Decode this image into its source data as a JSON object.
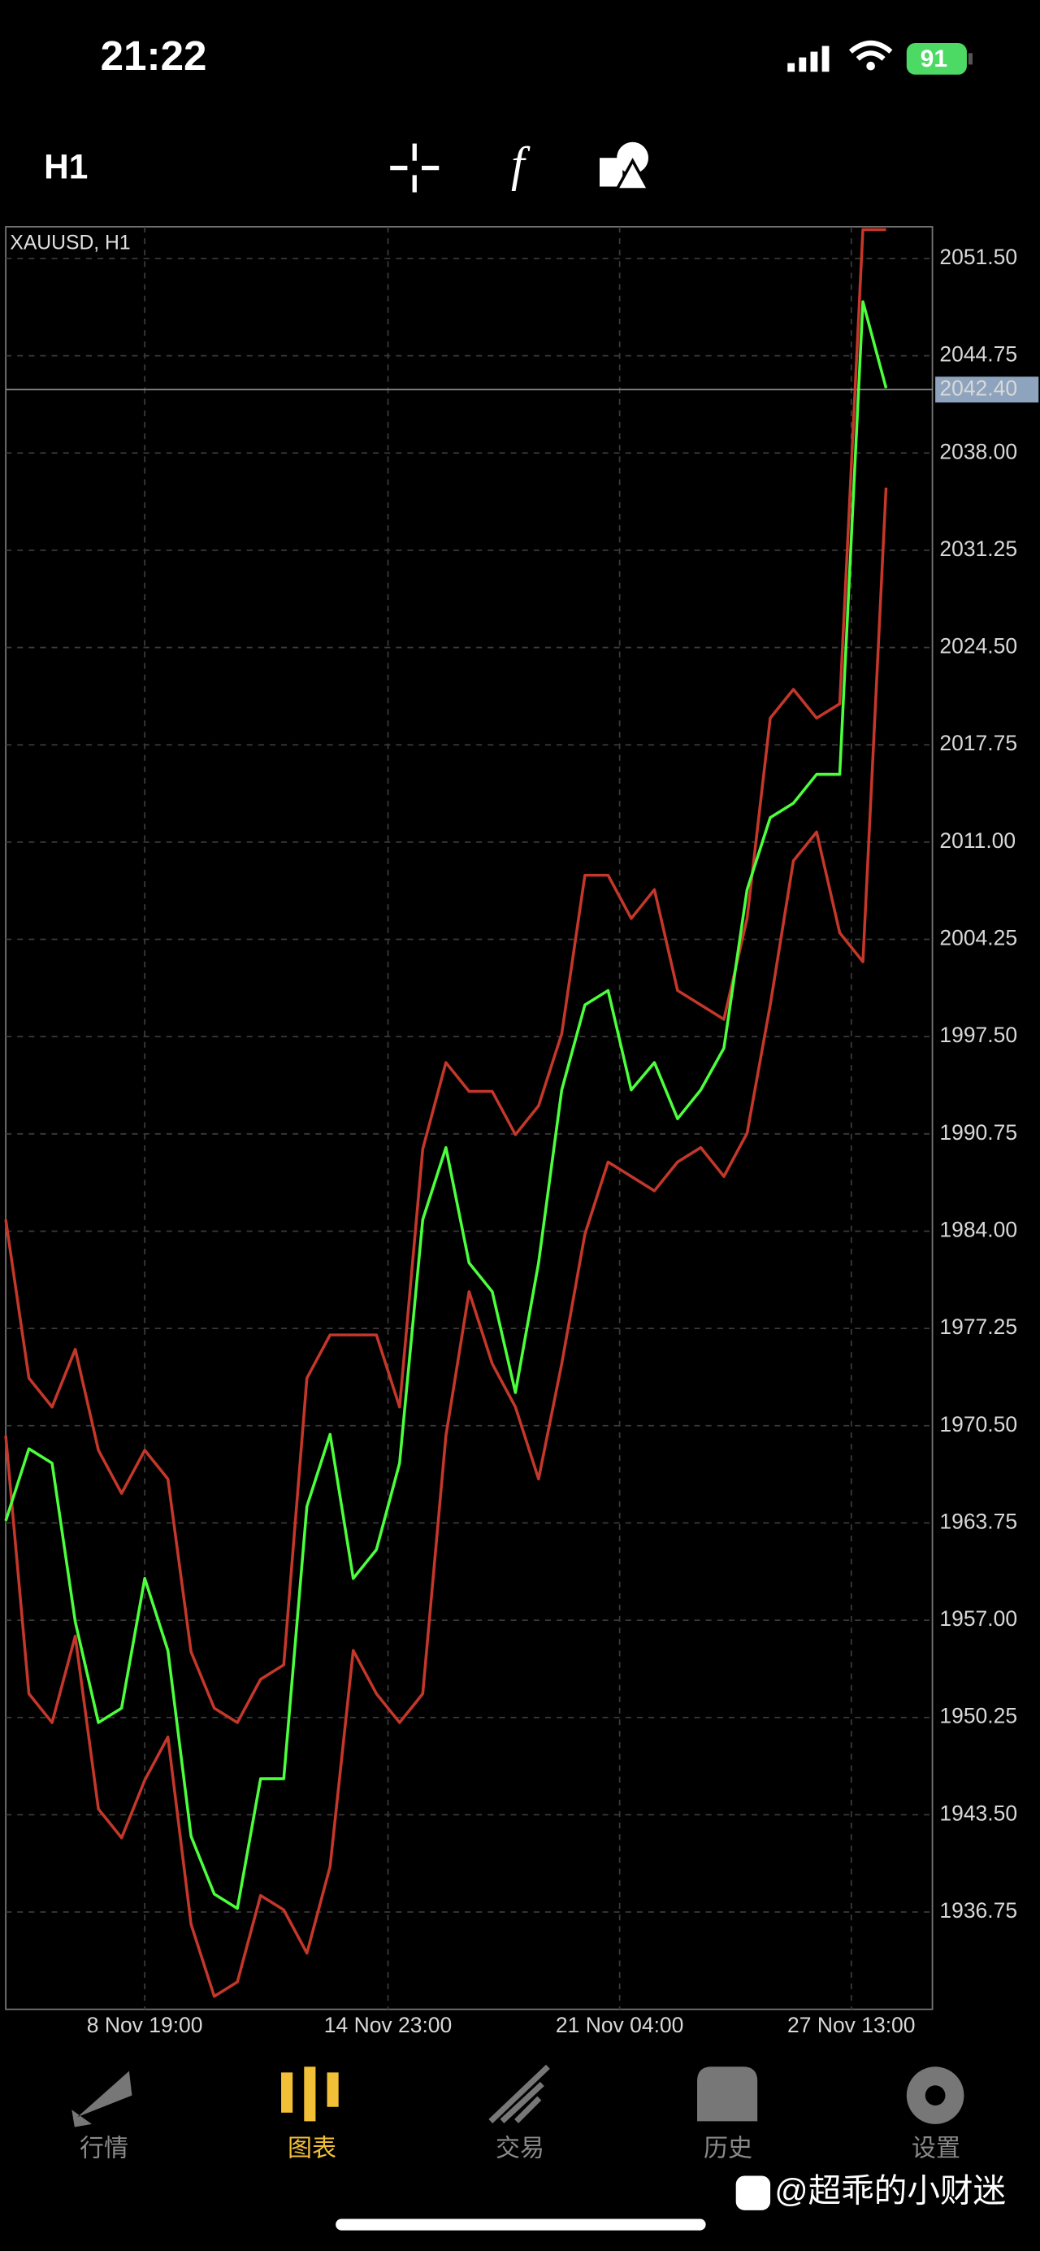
{
  "status_bar": {
    "time": "21:22",
    "battery": "91"
  },
  "toolbar": {
    "timeframe": "H1"
  },
  "chart_data": {
    "type": "line",
    "title": "XAUUSD, H1",
    "x": [
      0,
      4,
      8,
      12,
      16,
      20,
      24,
      28,
      32,
      36,
      40,
      44,
      48,
      52,
      56,
      60,
      64,
      68,
      72,
      76,
      80,
      84,
      88,
      92,
      96,
      100,
      104,
      108,
      112,
      116,
      120,
      124,
      128,
      132,
      136,
      140,
      144,
      148,
      152
    ],
    "xlim": [
      0,
      160
    ],
    "xticks": [
      {
        "value": 24,
        "label": "8 Nov 19:00"
      },
      {
        "value": 66,
        "label": "14 Nov 23:00"
      },
      {
        "value": 106,
        "label": "21 Nov 04:00"
      },
      {
        "value": 146,
        "label": "27 Nov 13:00"
      }
    ],
    "ylim": [
      1930.0,
      2053.7
    ],
    "yticks": [
      {
        "value": 1936.75,
        "label": "1936.75"
      },
      {
        "value": 1943.5,
        "label": "1943.50"
      },
      {
        "value": 1950.25,
        "label": "1950.25"
      },
      {
        "value": 1957,
        "label": "1957.00"
      },
      {
        "value": 1963.75,
        "label": "1963.75"
      },
      {
        "value": 1970.5,
        "label": "1970.50"
      },
      {
        "value": 1977.25,
        "label": "1977.25"
      },
      {
        "value": 1984,
        "label": "1984.00"
      },
      {
        "value": 1990.75,
        "label": "1990.75"
      },
      {
        "value": 1997.5,
        "label": "1997.50"
      },
      {
        "value": 2004.25,
        "label": "2004.25"
      },
      {
        "value": 2011,
        "label": "2011.00"
      },
      {
        "value": 2017.75,
        "label": "2017.75"
      },
      {
        "value": 2024.5,
        "label": "2024.50"
      },
      {
        "value": 2031.25,
        "label": "2031.25"
      },
      {
        "value": 2038,
        "label": "2038.00"
      },
      {
        "value": 2044.75,
        "label": "2044.75"
      },
      {
        "value": 2051.5,
        "label": "2051.50"
      }
    ],
    "grid": true,
    "current_price": {
      "value": 2042.4,
      "label": "2042.40"
    },
    "series": [
      {
        "color": "#c4372a",
        "values": [
          1984.8,
          1973.8,
          1971.8,
          1975.8,
          1968.8,
          1965.8,
          1968.8,
          1966.8,
          1954.8,
          1950.9,
          1949.9,
          1952.9,
          1953.9,
          1973.8,
          1976.8,
          1976.8,
          1976.8,
          1971.8,
          1989.7,
          1995.7,
          1993.7,
          1993.7,
          1990.7,
          1992.7,
          1997.7,
          2008.7,
          2008.7,
          2005.7,
          2007.7,
          2000.7,
          1999.7,
          1998.7,
          2005.7,
          2019.6,
          2021.6,
          2019.6,
          2020.6,
          2053.5,
          2053.5
        ]
      },
      {
        "color": "#c4372a",
        "values": [
          1969.8,
          1951.9,
          1949.9,
          1955.9,
          1943.9,
          1941.9,
          1945.9,
          1948.9,
          1935.9,
          1930.9,
          1931.9,
          1937.9,
          1936.9,
          1933.9,
          1939.9,
          1954.9,
          1951.9,
          1949.9,
          1951.9,
          1969.8,
          1979.8,
          1974.8,
          1971.8,
          1966.8,
          1974.8,
          1983.8,
          1988.8,
          1987.8,
          1986.8,
          1988.8,
          1989.8,
          1987.8,
          1990.8,
          1999.7,
          2009.7,
          2011.7,
          2004.7,
          2002.7,
          2035.6
        ]
      },
      {
        "color": "#4cff3c",
        "values": [
          1963.9,
          1968.9,
          1967.9,
          1956.9,
          1949.9,
          1950.9,
          1959.9,
          1954.9,
          1942.0,
          1938.0,
          1937.0,
          1946.0,
          1946.0,
          1964.9,
          1969.9,
          1959.9,
          1961.9,
          1967.9,
          1984.8,
          1989.8,
          1981.8,
          1979.8,
          1972.8,
          1981.8,
          1993.8,
          1999.7,
          2000.7,
          1993.8,
          1995.7,
          1991.8,
          1993.8,
          1996.7,
          2007.7,
          2012.7,
          2013.7,
          2015.7,
          2015.7,
          2048.5,
          2042.5
        ]
      }
    ]
  },
  "tabs": [
    "行情",
    "图表",
    "交易",
    "历史",
    "设置"
  ],
  "active_tab": 1,
  "watermark": "@超乖的小财迷"
}
